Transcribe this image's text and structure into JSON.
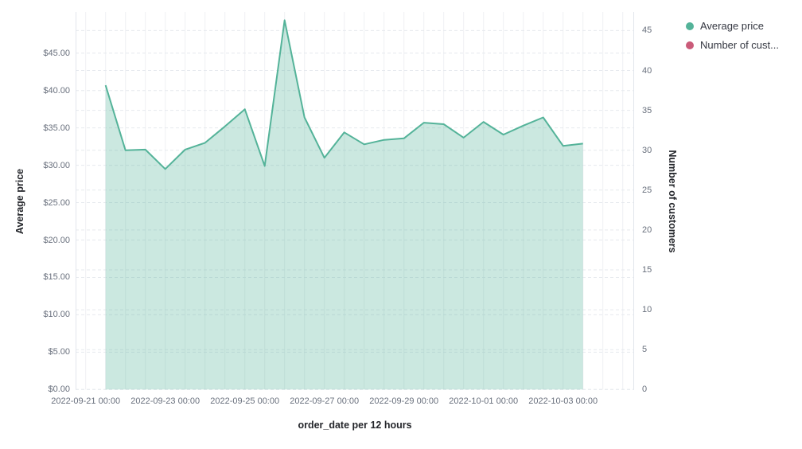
{
  "legend": {
    "position": "top-right",
    "items": [
      {
        "label": "Average price",
        "color": "#54B399"
      },
      {
        "label": "Number of cust...",
        "full_name": "Number of customers",
        "color": "#CA5B79"
      }
    ]
  },
  "chart_data": {
    "type": "area",
    "title": "",
    "xlabel": "order_date per 12 hours",
    "ylabel_left": "Average price",
    "ylabel_right": "Number of customers",
    "x_tick_labels": [
      "2022-09-21 00:00",
      "2022-09-23 00:00",
      "2022-09-25 00:00",
      "2022-09-27 00:00",
      "2022-09-29 00:00",
      "2022-10-01 00:00",
      "2022-10-03 00:00"
    ],
    "left_ticks": [
      "$0.00",
      "$5.00",
      "$10.00",
      "$15.00",
      "$20.00",
      "$25.00",
      "$30.00",
      "$35.00",
      "$40.00",
      "$45.00"
    ],
    "right_ticks": [
      "0",
      "5",
      "10",
      "15",
      "20",
      "25",
      "30",
      "35",
      "40",
      "45"
    ],
    "ylim_left": [
      0,
      50.5
    ],
    "ylim_right": [
      0,
      47.5
    ],
    "x_interval": "12h",
    "grid": "light dashed horizontal for both axes, faint vertical every 12 hours",
    "series": [
      {
        "name": "Average price",
        "axis": "left",
        "color": "#54B399",
        "fill_opacity": 0.3,
        "x": [
          "2022-09-21 12:00",
          "2022-09-22 00:00",
          "2022-09-22 12:00",
          "2022-09-23 00:00",
          "2022-09-23 12:00",
          "2022-09-24 00:00",
          "2022-09-24 12:00",
          "2022-09-25 00:00",
          "2022-09-25 12:00",
          "2022-09-26 00:00",
          "2022-09-26 12:00",
          "2022-09-27 00:00",
          "2022-09-27 12:00",
          "2022-09-28 00:00",
          "2022-09-28 12:00",
          "2022-09-29 00:00",
          "2022-09-29 12:00",
          "2022-09-30 00:00",
          "2022-09-30 12:00",
          "2022-10-01 00:00",
          "2022-10-01 12:00",
          "2022-10-02 00:00",
          "2022-10-02 12:00",
          "2022-10-03 00:00",
          "2022-10-03 12:00"
        ],
        "values": [
          40.7,
          32.0,
          32.1,
          29.5,
          32.1,
          33.0,
          35.2,
          37.5,
          29.9,
          49.4,
          36.4,
          31.0,
          34.4,
          32.8,
          33.4,
          33.6,
          35.7,
          35.5,
          33.7,
          35.8,
          34.1,
          35.3,
          36.4,
          32.6,
          32.9
        ]
      },
      {
        "name": "Number of customers",
        "axis": "right",
        "color": "#CA5B79",
        "values": [],
        "note_visible_in_pixels": "no pink series line is drawn in the plot"
      }
    ],
    "colors": {
      "background": "#ffffff",
      "grid_horizontal": "#e6e9ee",
      "grid_vertical": "#eef0f3",
      "plot_border": "#e2e6ec",
      "tick_text": "#69707d",
      "axis_title_text": "#24262b"
    }
  }
}
